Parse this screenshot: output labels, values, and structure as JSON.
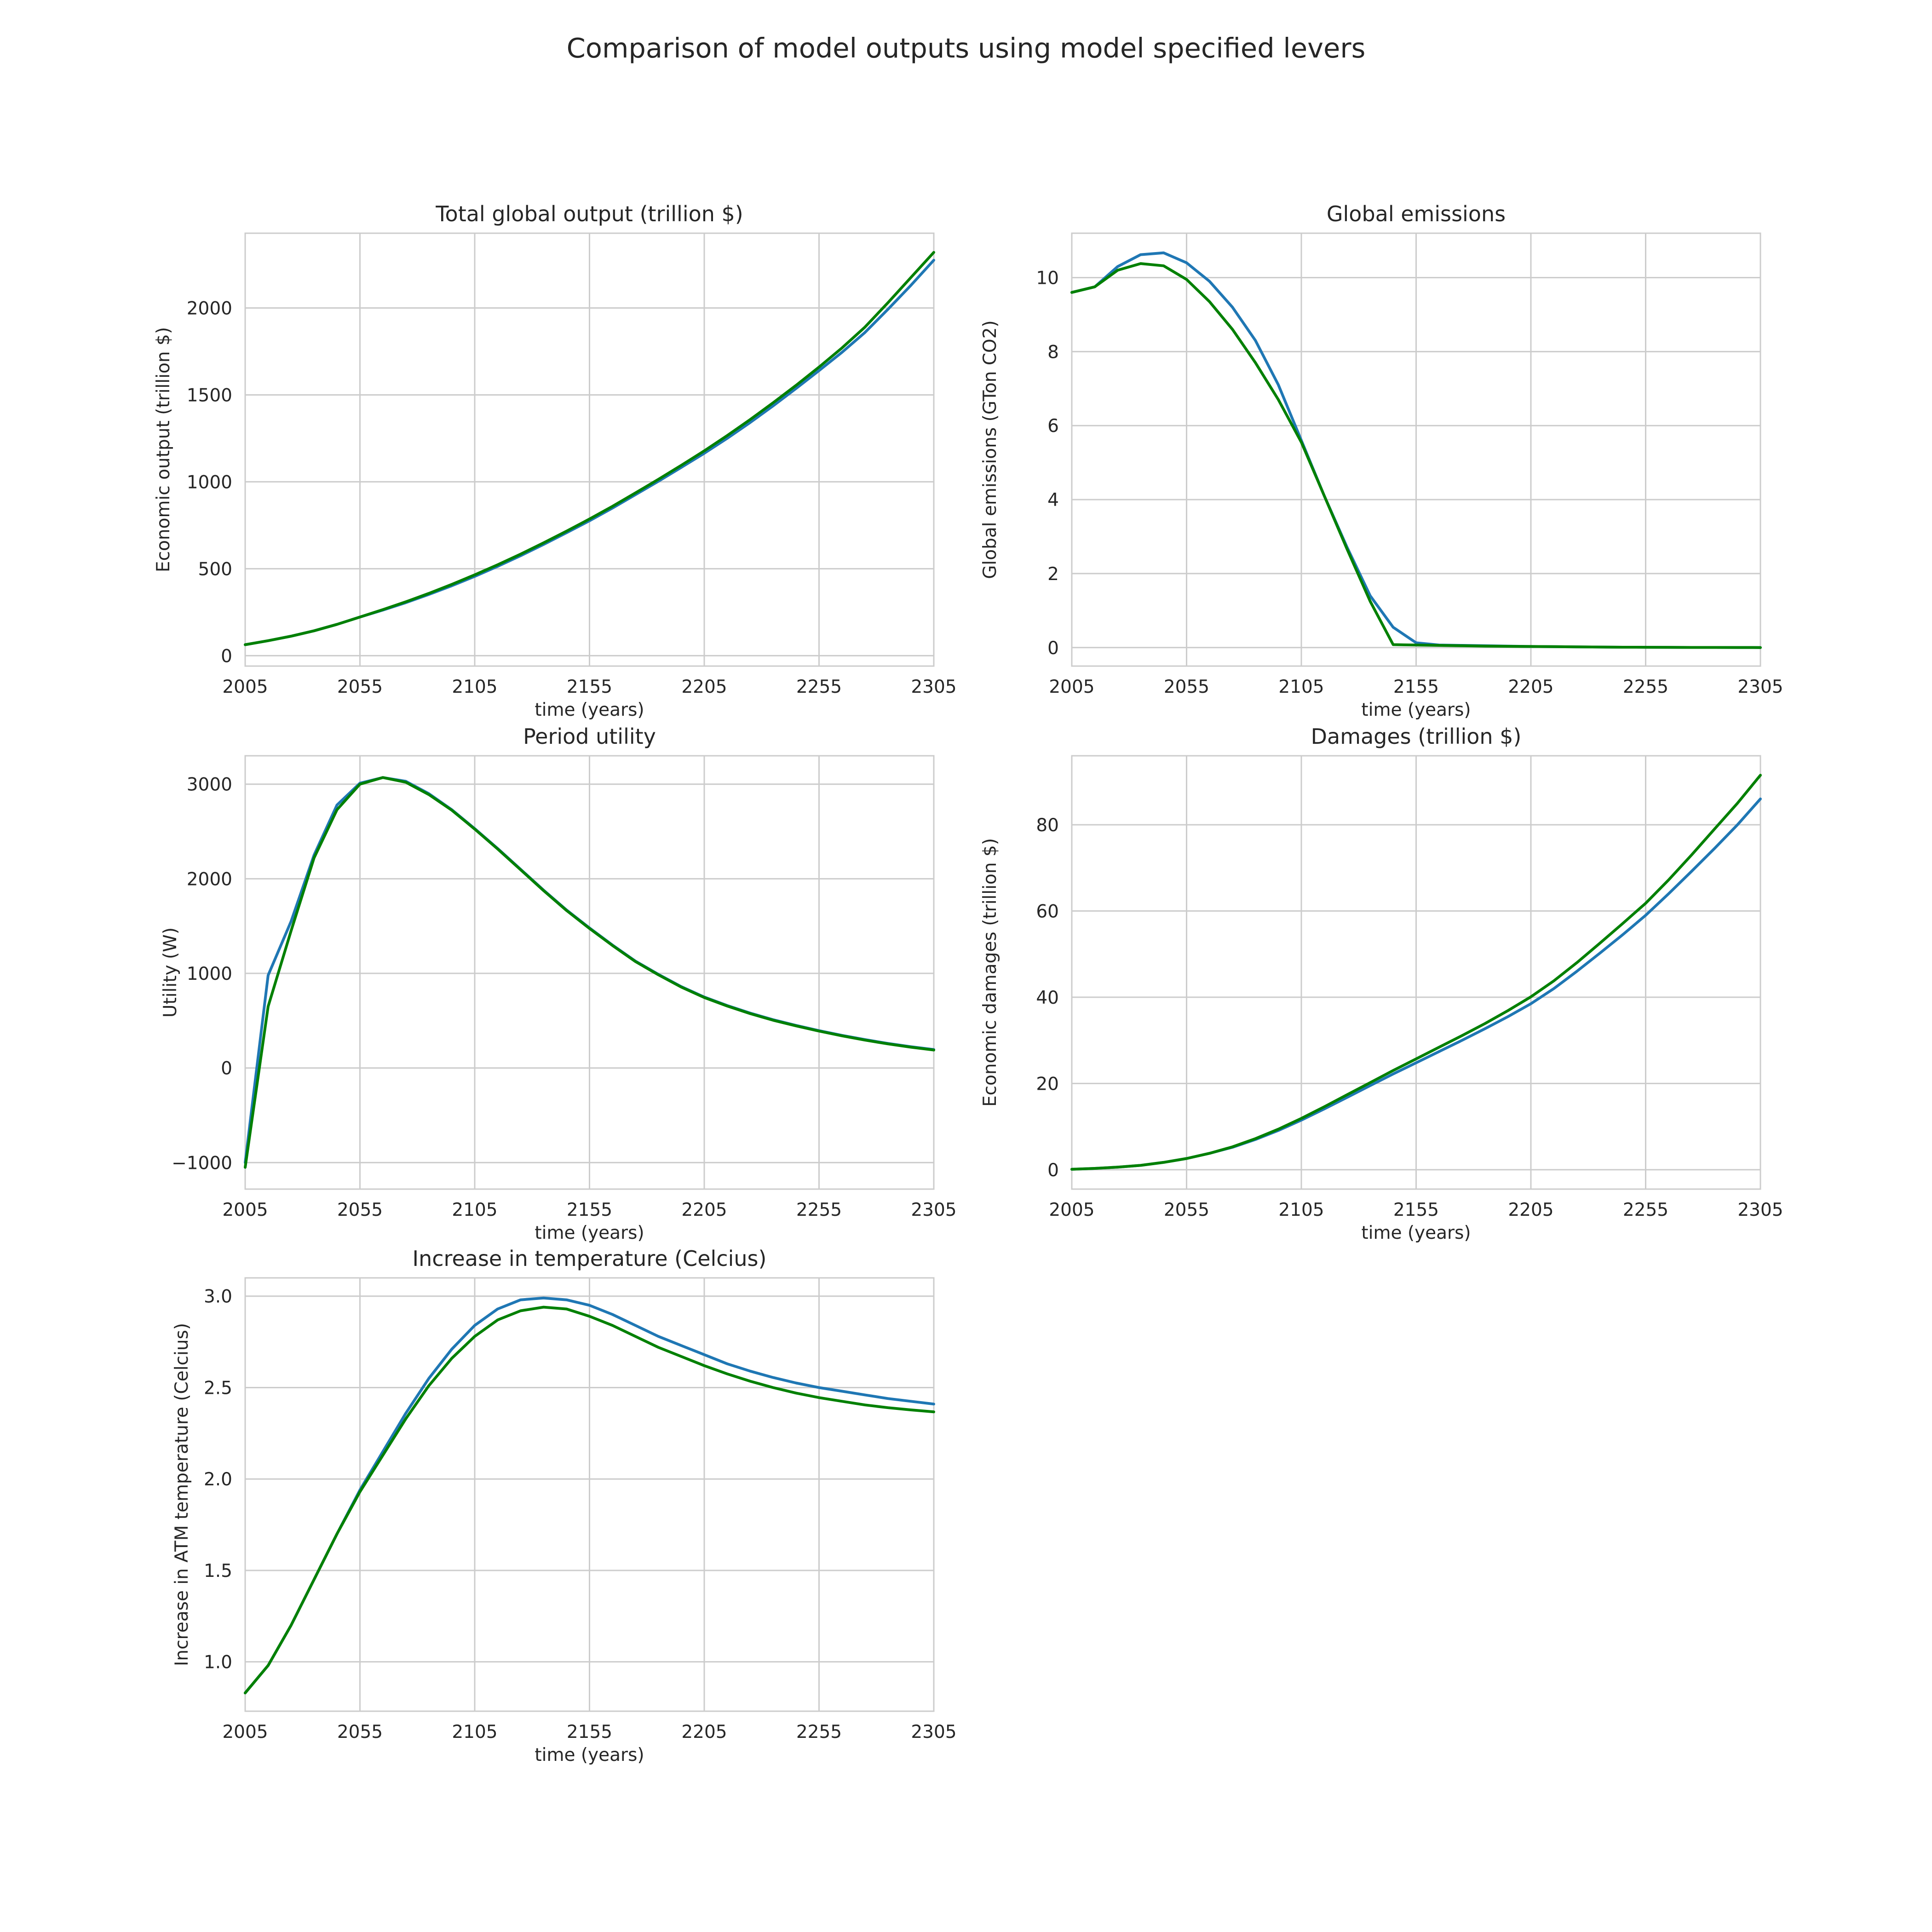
{
  "figure_title": "Comparison of model outputs using model specified levers",
  "colors": {
    "series_1": "#1f77b4",
    "series_2": "#008000",
    "grid": "#cccccc",
    "text": "#262626"
  },
  "chart_data": [
    {
      "type": "line",
      "title": "Total global output (trillion $)",
      "xlabel": "time (years)",
      "ylabel": "Economic output (trillion $)",
      "xlim": [
        2005,
        2305
      ],
      "ylim": [
        -60,
        2430
      ],
      "xticks": [
        2005,
        2055,
        2105,
        2155,
        2205,
        2255,
        2305
      ],
      "yticks": [
        0,
        500,
        1000,
        1500,
        2000
      ],
      "grid": true,
      "x": [
        2005,
        2015,
        2025,
        2035,
        2045,
        2055,
        2065,
        2075,
        2085,
        2095,
        2105,
        2115,
        2125,
        2135,
        2145,
        2155,
        2165,
        2175,
        2185,
        2195,
        2205,
        2215,
        2225,
        2235,
        2245,
        2255,
        2265,
        2275,
        2285,
        2295,
        2305
      ],
      "series": [
        {
          "values": [
            63,
            86,
            112,
            143,
            180,
            222,
            262,
            305,
            352,
            402,
            456,
            514,
            575,
            640,
            707,
            776,
            849,
            926,
            1003,
            1083,
            1164,
            1250,
            1341,
            1437,
            1537,
            1640,
            1745,
            1859,
            1992,
            2130,
            2275
          ]
        },
        {
          "values": [
            63,
            86,
            112,
            143,
            180,
            222,
            265,
            310,
            358,
            410,
            465,
            523,
            584,
            649,
            716,
            786,
            859,
            936,
            1014,
            1095,
            1178,
            1266,
            1358,
            1455,
            1555,
            1660,
            1770,
            1890,
            2030,
            2175,
            2320
          ]
        }
      ]
    },
    {
      "type": "line",
      "title": "Global emissions",
      "xlabel": "time (years)",
      "ylabel": "Global emissions (GTon CO2)",
      "xlim": [
        2005,
        2305
      ],
      "ylim": [
        -0.5,
        11.2
      ],
      "xticks": [
        2005,
        2055,
        2105,
        2155,
        2205,
        2255,
        2305
      ],
      "yticks": [
        0,
        2,
        4,
        6,
        8,
        10
      ],
      "grid": true,
      "x": [
        2005,
        2015,
        2025,
        2035,
        2045,
        2055,
        2065,
        2075,
        2085,
        2095,
        2105,
        2115,
        2125,
        2135,
        2145,
        2155,
        2165,
        2175,
        2185,
        2195,
        2205,
        2215,
        2225,
        2235,
        2245,
        2255,
        2265,
        2275,
        2285,
        2295,
        2305
      ],
      "series": [
        {
          "values": [
            9.6,
            9.75,
            10.3,
            10.62,
            10.67,
            10.4,
            9.9,
            9.2,
            8.3,
            7.1,
            5.6,
            4.1,
            2.7,
            1.4,
            0.55,
            0.13,
            0.07,
            0.06,
            0.05,
            0.04,
            0.03,
            0.025,
            0.02,
            0.015,
            0.01,
            0.008,
            0.006,
            0.004,
            0.003,
            0.002,
            0.001
          ]
        },
        {
          "values": [
            9.6,
            9.75,
            10.2,
            10.38,
            10.32,
            9.95,
            9.35,
            8.6,
            7.7,
            6.7,
            5.55,
            4.1,
            2.65,
            1.25,
            0.08,
            0.07,
            0.06,
            0.05,
            0.04,
            0.035,
            0.03,
            0.025,
            0.02,
            0.015,
            0.01,
            0.008,
            0.006,
            0.004,
            0.003,
            0.002,
            0.001
          ]
        }
      ]
    },
    {
      "type": "line",
      "title": "Period utility",
      "xlabel": "time (years)",
      "ylabel": "Utility (W)",
      "xlim": [
        2005,
        2305
      ],
      "ylim": [
        -1280,
        3300
      ],
      "xticks": [
        2005,
        2055,
        2105,
        2155,
        2205,
        2255,
        2305
      ],
      "yticks": [
        -1000,
        0,
        1000,
        2000,
        3000
      ],
      "grid": true,
      "x": [
        2005,
        2015,
        2025,
        2035,
        2045,
        2055,
        2065,
        2075,
        2085,
        2095,
        2105,
        2115,
        2125,
        2135,
        2145,
        2155,
        2165,
        2175,
        2185,
        2195,
        2205,
        2215,
        2225,
        2235,
        2245,
        2255,
        2265,
        2275,
        2285,
        2295,
        2305
      ],
      "series": [
        {
          "values": [
            -1000,
            980,
            1550,
            2250,
            2780,
            3010,
            3070,
            3030,
            2900,
            2730,
            2530,
            2320,
            2100,
            1880,
            1670,
            1480,
            1300,
            1130,
            990,
            860,
            750,
            660,
            580,
            510,
            450,
            395,
            345,
            300,
            260,
            225,
            195
          ]
        },
        {
          "values": [
            -1050,
            650,
            1450,
            2220,
            2730,
            3000,
            3070,
            3020,
            2890,
            2725,
            2525,
            2315,
            2095,
            1875,
            1665,
            1475,
            1295,
            1125,
            985,
            855,
            745,
            655,
            575,
            505,
            445,
            390,
            340,
            295,
            255,
            220,
            190
          ]
        }
      ]
    },
    {
      "type": "line",
      "title": "Damages (trillion $)",
      "xlabel": "time (years)",
      "ylabel": "Economic damages (trillion $)",
      "xlim": [
        2005,
        2305
      ],
      "ylim": [
        -4.5,
        96
      ],
      "xticks": [
        2005,
        2055,
        2105,
        2155,
        2205,
        2255,
        2305
      ],
      "yticks": [
        0,
        20,
        40,
        60,
        80
      ],
      "grid": true,
      "x": [
        2005,
        2015,
        2025,
        2035,
        2045,
        2055,
        2065,
        2075,
        2085,
        2095,
        2105,
        2115,
        2125,
        2135,
        2145,
        2155,
        2165,
        2175,
        2185,
        2195,
        2205,
        2215,
        2225,
        2235,
        2245,
        2255,
        2265,
        2275,
        2285,
        2295,
        2305
      ],
      "series": [
        {
          "values": [
            0.1,
            0.3,
            0.6,
            1.0,
            1.7,
            2.6,
            3.8,
            5.2,
            7.0,
            9.1,
            11.5,
            14.1,
            16.8,
            19.5,
            22.2,
            24.8,
            27.4,
            30.0,
            32.7,
            35.5,
            38.5,
            42.0,
            46.0,
            50.2,
            54.5,
            59.0,
            64.0,
            69.2,
            74.5,
            80.0,
            86.0
          ]
        },
        {
          "values": [
            0.1,
            0.3,
            0.6,
            1.0,
            1.7,
            2.6,
            3.8,
            5.3,
            7.2,
            9.4,
            11.9,
            14.6,
            17.4,
            20.2,
            23.0,
            25.7,
            28.4,
            31.1,
            33.9,
            36.9,
            40.1,
            43.8,
            48.0,
            52.5,
            57.1,
            61.8,
            67.2,
            73.0,
            79.0,
            85.0,
            91.5
          ]
        }
      ]
    },
    {
      "type": "line",
      "title": "Increase in temperature (Celcius)",
      "xlabel": "time (years)",
      "ylabel": "Increase in ATM temperature (Celcius)",
      "xlim": [
        2005,
        2305
      ],
      "ylim": [
        0.73,
        3.1
      ],
      "xticks": [
        2005,
        2055,
        2105,
        2155,
        2205,
        2255,
        2305
      ],
      "yticks": [
        1.0,
        1.5,
        2.0,
        2.5,
        3.0
      ],
      "ytick_labels": [
        "1.0",
        "1.5",
        "2.0",
        "2.5",
        "3.0"
      ],
      "grid": true,
      "x": [
        2005,
        2015,
        2025,
        2035,
        2045,
        2055,
        2065,
        2075,
        2085,
        2095,
        2105,
        2115,
        2125,
        2135,
        2145,
        2155,
        2165,
        2175,
        2185,
        2195,
        2205,
        2215,
        2225,
        2235,
        2245,
        2255,
        2265,
        2275,
        2285,
        2295,
        2305
      ],
      "series": [
        {
          "values": [
            0.83,
            0.98,
            1.2,
            1.45,
            1.7,
            1.94,
            2.15,
            2.36,
            2.55,
            2.71,
            2.84,
            2.93,
            2.98,
            2.99,
            2.98,
            2.95,
            2.9,
            2.84,
            2.78,
            2.73,
            2.68,
            2.63,
            2.59,
            2.555,
            2.525,
            2.5,
            2.48,
            2.46,
            2.44,
            2.425,
            2.41
          ]
        },
        {
          "values": [
            0.83,
            0.98,
            1.2,
            1.45,
            1.7,
            1.93,
            2.13,
            2.33,
            2.51,
            2.66,
            2.78,
            2.87,
            2.92,
            2.94,
            2.93,
            2.89,
            2.84,
            2.78,
            2.72,
            2.67,
            2.62,
            2.575,
            2.535,
            2.5,
            2.47,
            2.445,
            2.425,
            2.405,
            2.39,
            2.378,
            2.367
          ]
        }
      ]
    }
  ]
}
